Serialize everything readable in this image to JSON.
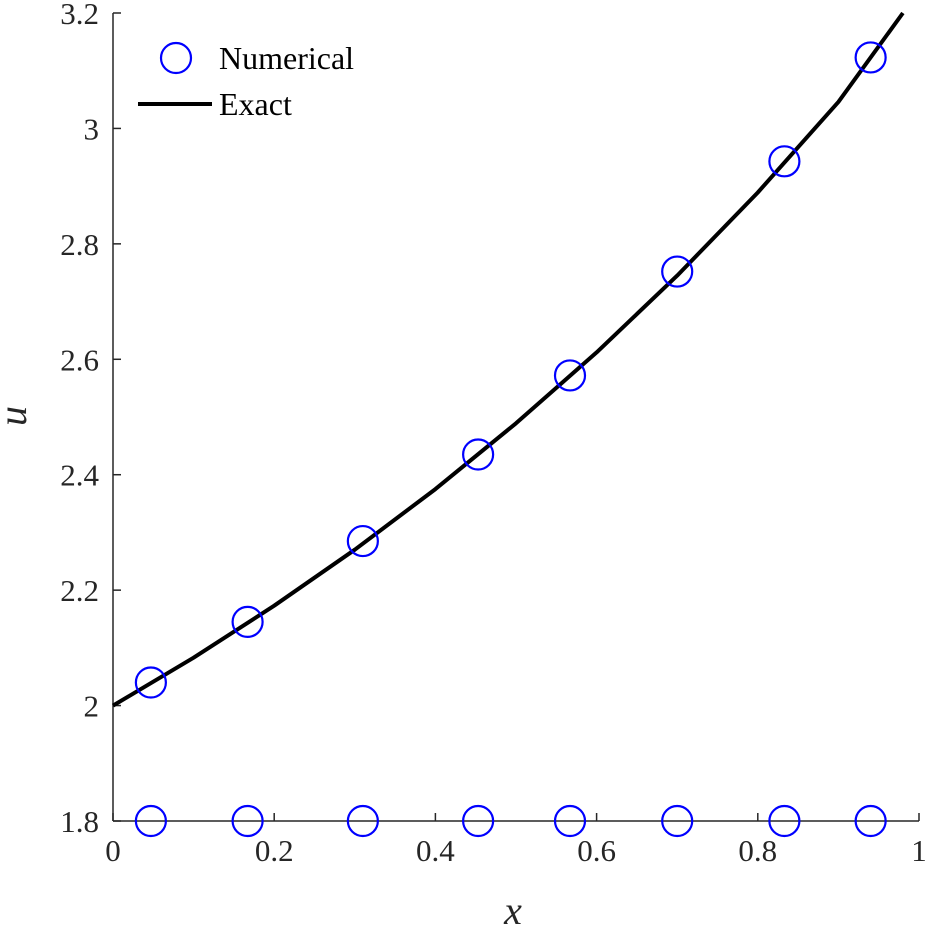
{
  "chart_data": {
    "type": "scatter",
    "xlabel": "x",
    "ylabel": "u",
    "xlim": [
      0,
      1
    ],
    "ylim": [
      1.8,
      3.2
    ],
    "xticks": [
      "0",
      "0.2",
      "0.4",
      "0.6",
      "0.8",
      "1"
    ],
    "yticks": [
      "1.8",
      "2",
      "2.2",
      "2.4",
      "2.6",
      "2.8",
      "3",
      "3.2"
    ],
    "grid": false,
    "legend_position": "top-left",
    "series": [
      {
        "name": "Numerical",
        "kind": "markers",
        "marker": "open-circle",
        "color": "#0000ff",
        "x": [
          0.047,
          0.167,
          0.31,
          0.453,
          0.567,
          0.7,
          0.833,
          0.94
        ],
        "y": [
          2.04,
          2.145,
          2.285,
          2.435,
          2.572,
          2.752,
          2.943,
          3.123
        ]
      },
      {
        "name": "",
        "kind": "markers",
        "marker": "open-circle",
        "color": "#0000ff",
        "x": [
          0.047,
          0.167,
          0.31,
          0.453,
          0.567,
          0.7,
          0.833,
          0.94
        ],
        "y": [
          1.8,
          1.8,
          1.8,
          1.8,
          1.8,
          1.8,
          1.8,
          1.8
        ]
      },
      {
        "name": "Exact",
        "kind": "line",
        "color": "#000000",
        "x": [
          0,
          0.1,
          0.2,
          0.3,
          0.4,
          0.5,
          0.6,
          0.7,
          0.8,
          0.9,
          0.98
        ],
        "y": [
          2.0,
          2.083,
          2.173,
          2.27,
          2.375,
          2.489,
          2.612,
          2.745,
          2.889,
          3.046,
          3.2
        ]
      }
    ]
  }
}
